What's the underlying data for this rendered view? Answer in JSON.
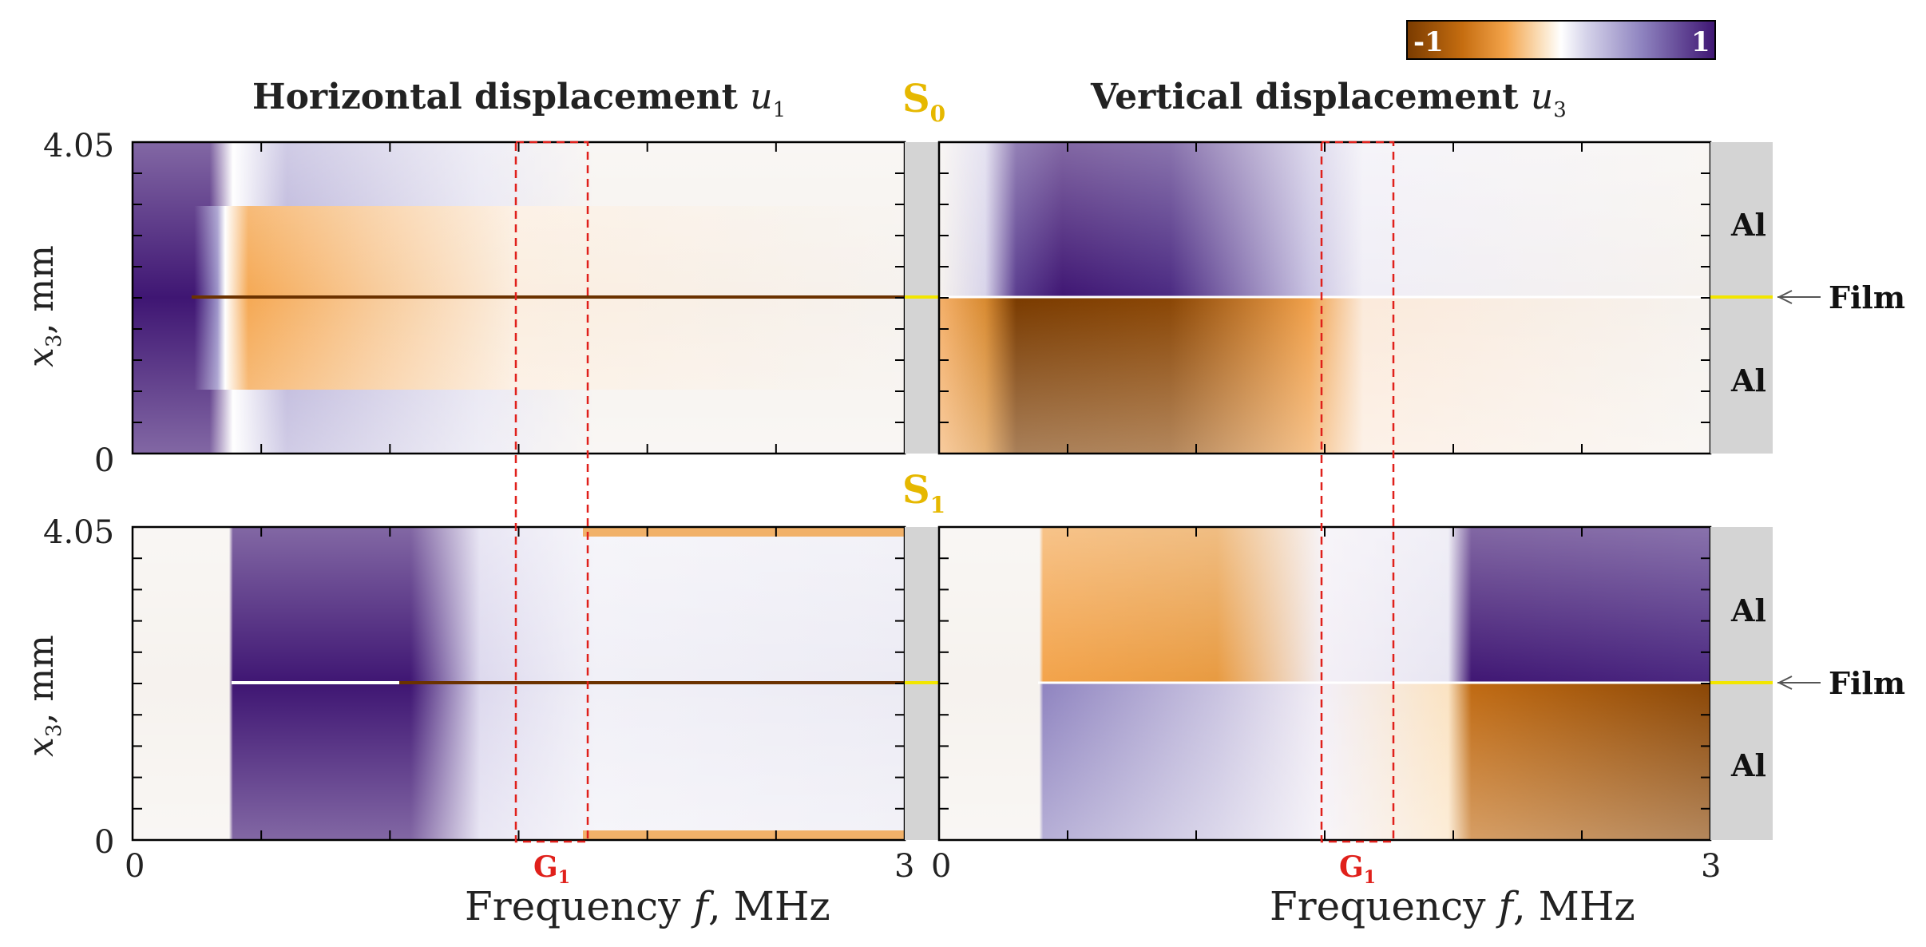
{
  "colorbar": {
    "min_label": "-1",
    "max_label": "1",
    "colors": [
      "#7a3b00",
      "#c56d10",
      "#f3a34a",
      "#fbe3c2",
      "#ffffff",
      "#d6d4ea",
      "#8f84c0",
      "#3f1673"
    ]
  },
  "titles": {
    "left_prefix": "Horizontal displacement ",
    "left_var": "u",
    "left_sub": "1",
    "right_prefix": "Vertical displacement ",
    "right_var": "u",
    "right_sub": "3"
  },
  "mode_labels": {
    "top": {
      "main": "S",
      "sub": "0"
    },
    "bottom": {
      "main": "S",
      "sub": "1"
    }
  },
  "axis": {
    "ylabel_var": "x",
    "ylabel_sub": "3",
    "ylabel_rest": ", mm",
    "y_ticks": [
      "4.05",
      "0"
    ],
    "x_ticks": [
      "0",
      "3"
    ],
    "xlabel_prefix": "Frequency ",
    "xlabel_var": "f",
    "xlabel_rest": ", MHz"
  },
  "gap_label": {
    "main": "G",
    "sub": "1"
  },
  "layers": {
    "upper": "Al",
    "lower": "Al",
    "film": "Film"
  },
  "colors": {
    "mode_label": "#e6b800",
    "gap": "#e0201b",
    "film_line": "#f2e600",
    "sidebar": "#d4d4d4",
    "arrow": "#555555"
  },
  "chart_data": [
    {
      "type": "heatmap",
      "title": "Horizontal displacement u1",
      "mode": "S0",
      "xlabel": "Frequency f, MHz",
      "ylabel": "x3, mm",
      "xlim": [
        0,
        3
      ],
      "ylim": [
        0,
        4.05
      ],
      "color_range": [
        -1,
        1
      ],
      "gap_band_MHz": [
        1.5,
        1.78
      ],
      "film_x3_mm": 2.025
    },
    {
      "type": "heatmap",
      "title": "Vertical displacement u3",
      "mode": "S0",
      "xlabel": "Frequency f, MHz",
      "ylabel": "x3, mm",
      "xlim": [
        0,
        3
      ],
      "ylim": [
        0,
        4.05
      ],
      "color_range": [
        -1,
        1
      ],
      "gap_band_MHz": [
        1.5,
        1.78
      ],
      "film_x3_mm": 2.025
    },
    {
      "type": "heatmap",
      "title": "Horizontal displacement u1",
      "mode": "S1",
      "xlabel": "Frequency f, MHz",
      "ylabel": "x3, mm",
      "xlim": [
        0,
        3
      ],
      "ylim": [
        0,
        4.05
      ],
      "color_range": [
        -1,
        1
      ],
      "gap_band_MHz": [
        1.5,
        1.78
      ],
      "film_x3_mm": 2.025
    },
    {
      "type": "heatmap",
      "title": "Vertical displacement u3",
      "mode": "S1",
      "xlabel": "Frequency f, MHz",
      "ylabel": "x3, mm",
      "xlim": [
        0,
        3
      ],
      "ylim": [
        0,
        4.05
      ],
      "color_range": [
        -1,
        1
      ],
      "gap_band_MHz": [
        1.5,
        1.78
      ],
      "film_x3_mm": 2.025
    }
  ]
}
